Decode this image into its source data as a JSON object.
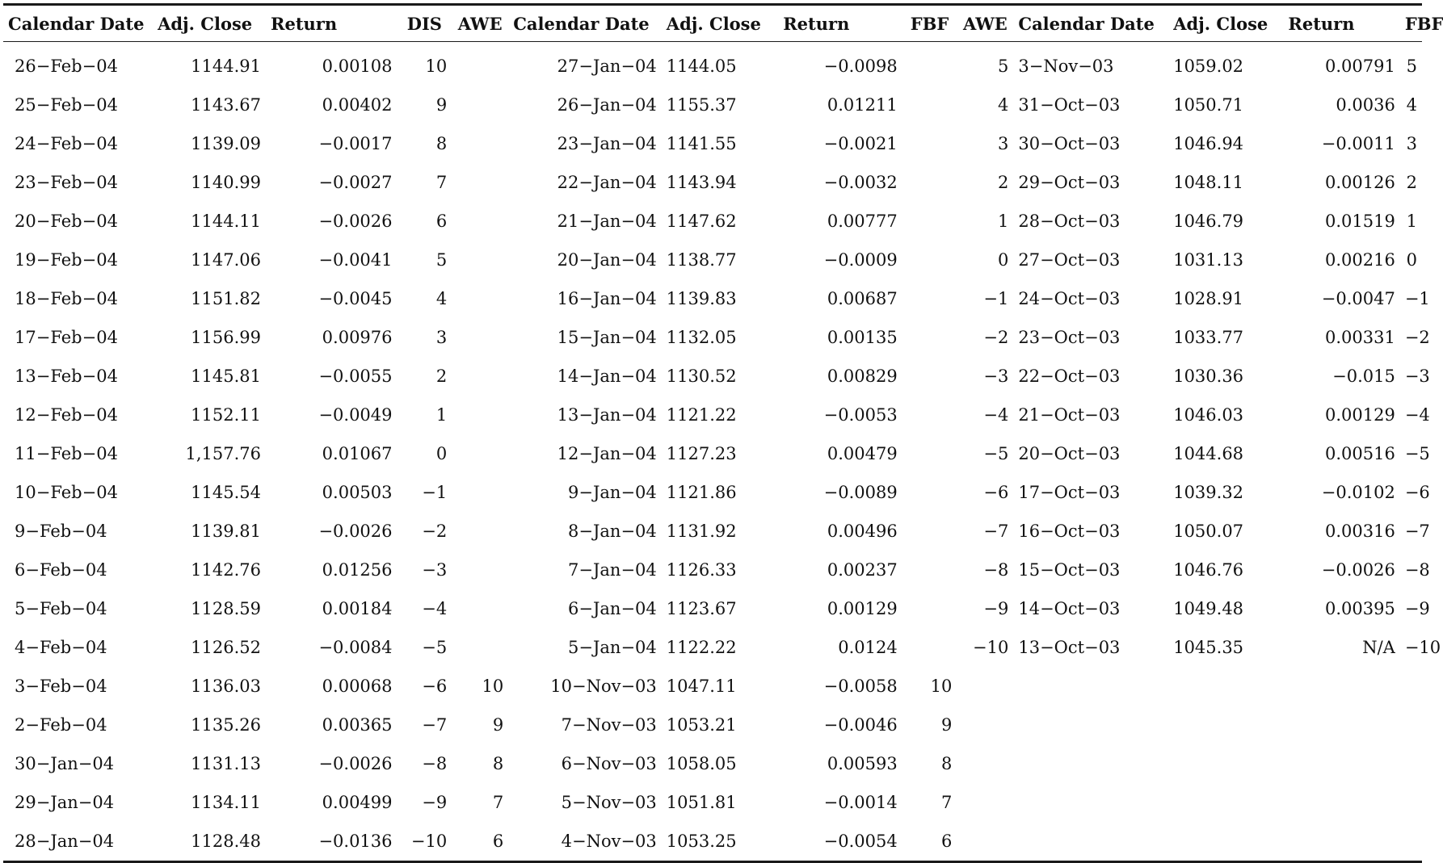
{
  "headers": [
    "Calendar Date",
    "Adj. Close",
    "Return",
    "DIS",
    "AWE",
    "Calendar Date",
    "Adj. Close",
    "Return",
    "FBF",
    "AWE",
    "Calendar Date",
    "Adj. Close",
    "Return",
    "FBF"
  ],
  "rows": [
    [
      "26−Feb−04",
      "1144.91",
      "0.00108",
      "10",
      "",
      "27−Jan−04",
      "1144.05",
      "−0.0098",
      "",
      "5",
      "3−Nov−03",
      "1059.02",
      "0.00791",
      "5"
    ],
    [
      "25−Feb−04",
      "1143.67",
      "0.00402",
      "9",
      "",
      "26−Jan−04",
      "1155.37",
      "0.01211",
      "",
      "4",
      "31−Oct−03",
      "1050.71",
      "0.0036",
      "4"
    ],
    [
      "24−Feb−04",
      "1139.09",
      "−0.0017",
      "8",
      "",
      "23−Jan−04",
      "1141.55",
      "−0.0021",
      "",
      "3",
      "30−Oct−03",
      "1046.94",
      "−0.0011",
      "3"
    ],
    [
      "23−Feb−04",
      "1140.99",
      "−0.0027",
      "7",
      "",
      "22−Jan−04",
      "1143.94",
      "−0.0032",
      "",
      "2",
      "29−Oct−03",
      "1048.11",
      "0.00126",
      "2"
    ],
    [
      "20−Feb−04",
      "1144.11",
      "−0.0026",
      "6",
      "",
      "21−Jan−04",
      "1147.62",
      "0.00777",
      "",
      "1",
      "28−Oct−03",
      "1046.79",
      "0.01519",
      "1"
    ],
    [
      "19−Feb−04",
      "1147.06",
      "−0.0041",
      "5",
      "",
      "20−Jan−04",
      "1138.77",
      "−0.0009",
      "",
      "0",
      "27−Oct−03",
      "1031.13",
      "0.00216",
      "0"
    ],
    [
      "18−Feb−04",
      "1151.82",
      "−0.0045",
      "4",
      "",
      "16−Jan−04",
      "1139.83",
      "0.00687",
      "",
      "−1",
      "24−Oct−03",
      "1028.91",
      "−0.0047",
      "−1"
    ],
    [
      "17−Feb−04",
      "1156.99",
      "0.00976",
      "3",
      "",
      "15−Jan−04",
      "1132.05",
      "0.00135",
      "",
      "−2",
      "23−Oct−03",
      "1033.77",
      "0.00331",
      "−2"
    ],
    [
      "13−Feb−04",
      "1145.81",
      "−0.0055",
      "2",
      "",
      "14−Jan−04",
      "1130.52",
      "0.00829",
      "",
      "−3",
      "22−Oct−03",
      "1030.36",
      "−0.015",
      "−3"
    ],
    [
      "12−Feb−04",
      "1152.11",
      "−0.0049",
      "1",
      "",
      "13−Jan−04",
      "1121.22",
      "−0.0053",
      "",
      "−4",
      "21−Oct−03",
      "1046.03",
      "0.00129",
      "−4"
    ],
    [
      "11−Feb−04",
      "1,157.76",
      "0.01067",
      "0",
      "",
      "12−Jan−04",
      "1127.23",
      "0.00479",
      "",
      "−5",
      "20−Oct−03",
      "1044.68",
      "0.00516",
      "−5"
    ],
    [
      "10−Feb−04",
      "1145.54",
      "0.00503",
      "−1",
      "",
      "9−Jan−04",
      "1121.86",
      "−0.0089",
      "",
      "−6",
      "17−Oct−03",
      "1039.32",
      "−0.0102",
      "−6"
    ],
    [
      "9−Feb−04",
      "1139.81",
      "−0.0026",
      "−2",
      "",
      "8−Jan−04",
      "1131.92",
      "0.00496",
      "",
      "−7",
      "16−Oct−03",
      "1050.07",
      "0.00316",
      "−7"
    ],
    [
      "6−Feb−04",
      "1142.76",
      "0.01256",
      "−3",
      "",
      "7−Jan−04",
      "1126.33",
      "0.00237",
      "",
      "−8",
      "15−Oct−03",
      "1046.76",
      "−0.0026",
      "−8"
    ],
    [
      "5−Feb−04",
      "1128.59",
      "0.00184",
      "−4",
      "",
      "6−Jan−04",
      "1123.67",
      "0.00129",
      "",
      "−9",
      "14−Oct−03",
      "1049.48",
      "0.00395",
      "−9"
    ],
    [
      "4−Feb−04",
      "1126.52",
      "−0.0084",
      "−5",
      "",
      "5−Jan−04",
      "1122.22",
      "0.0124",
      "",
      "−10",
      "13−Oct−03",
      "1045.35",
      "N/A",
      "−10"
    ],
    [
      "3−Feb−04",
      "1136.03",
      "0.00068",
      "−6",
      "10",
      "10−Nov−03",
      "1047.11",
      "−0.0058",
      "10",
      "",
      "",
      "",
      "",
      ""
    ],
    [
      "2−Feb−04",
      "1135.26",
      "0.00365",
      "−7",
      "9",
      "7−Nov−03",
      "1053.21",
      "−0.0046",
      "9",
      "",
      "",
      "",
      "",
      ""
    ],
    [
      "30−Jan−04",
      "1131.13",
      "−0.0026",
      "−8",
      "8",
      "6−Nov−03",
      "1058.05",
      "0.00593",
      "8",
      "",
      "",
      "",
      "",
      ""
    ],
    [
      "29−Jan−04",
      "1134.11",
      "0.00499",
      "−9",
      "7",
      "5−Nov−03",
      "1051.81",
      "−0.0014",
      "7",
      "",
      "",
      "",
      "",
      ""
    ],
    [
      "28−Jan−04",
      "1128.48",
      "−0.0136",
      "−10",
      "6",
      "4−Nov−03",
      "1053.25",
      "−0.0054",
      "6",
      "",
      "",
      "",
      "",
      ""
    ]
  ]
}
